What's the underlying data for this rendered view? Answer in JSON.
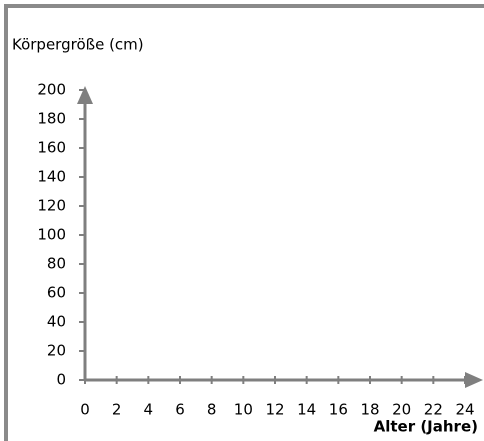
{
  "chart_data": {
    "type": "line",
    "title": "Körpergröße (cm)",
    "x_label": "Alter (Jahre)",
    "xlim": [
      0,
      24
    ],
    "xticks": [
      0,
      2,
      4,
      6,
      8,
      10,
      12,
      14,
      16,
      18,
      20,
      22,
      24
    ],
    "ylim": [
      0,
      200
    ],
    "yticks": [
      0,
      20,
      40,
      60,
      80,
      100,
      120,
      140,
      160,
      180,
      200
    ],
    "axis_color": "#7f7f7f"
  }
}
